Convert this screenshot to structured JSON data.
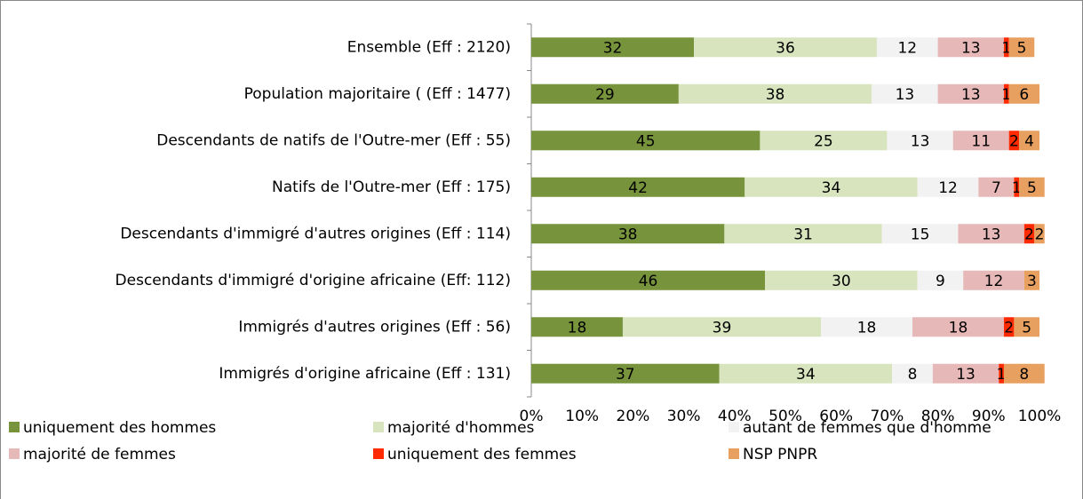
{
  "chart_data": {
    "type": "stacked-barh",
    "categories": [
      "Ensemble (Eff : 2120)",
      "Population majoritaire ( (Eff : 1477)",
      "Descendants de natifs de l'Outre-mer (Eff : 55)",
      "Natifs de l'Outre-mer (Eff : 175)",
      "Descendants d'immigré d'autres origines (Eff : 114)",
      "Descendants d'immigré d'origine africaine (Eff: 112)",
      "Immigrés d'autres origines (Eff : 56)",
      "Immigrés d'origine africaine (Eff : 131)"
    ],
    "series": [
      {
        "name": "uniquement des hommes",
        "color": "#77933c",
        "values": [
          32,
          29,
          45,
          42,
          38,
          46,
          18,
          37
        ]
      },
      {
        "name": "majorité d'hommes",
        "color": "#d7e4bd",
        "values": [
          36,
          38,
          25,
          34,
          31,
          30,
          39,
          34
        ]
      },
      {
        "name": "autant de femmes que d'homme",
        "color": "#f2f2f2",
        "values": [
          12,
          13,
          13,
          12,
          15,
          9,
          18,
          8
        ]
      },
      {
        "name": "majorité de femmes",
        "color": "#e6b9b8",
        "values": [
          13,
          13,
          11,
          7,
          13,
          12,
          18,
          13
        ]
      },
      {
        "name": "uniquement des femmes",
        "color": "#ff2a00",
        "values": [
          1,
          1,
          2,
          1,
          2,
          null,
          2,
          1
        ]
      },
      {
        "name": "NSP PNPR",
        "color": "#e8a060",
        "values": [
          5,
          6,
          4,
          5,
          2,
          3,
          5,
          8
        ]
      }
    ],
    "xlim": [
      0,
      100
    ],
    "xticks": [
      {
        "value": 0,
        "label": "0%"
      },
      {
        "value": 10,
        "label": "10%"
      },
      {
        "value": 20,
        "label": "20%"
      },
      {
        "value": 30,
        "label": "30%"
      },
      {
        "value": 40,
        "label": "40%"
      },
      {
        "value": 50,
        "label": "50%"
      },
      {
        "value": 60,
        "label": "60%"
      },
      {
        "value": 70,
        "label": "70%"
      },
      {
        "value": 80,
        "label": "80%"
      },
      {
        "value": 90,
        "label": "90%"
      },
      {
        "value": 100,
        "label": "100%"
      }
    ],
    "legend": "bottom"
  }
}
